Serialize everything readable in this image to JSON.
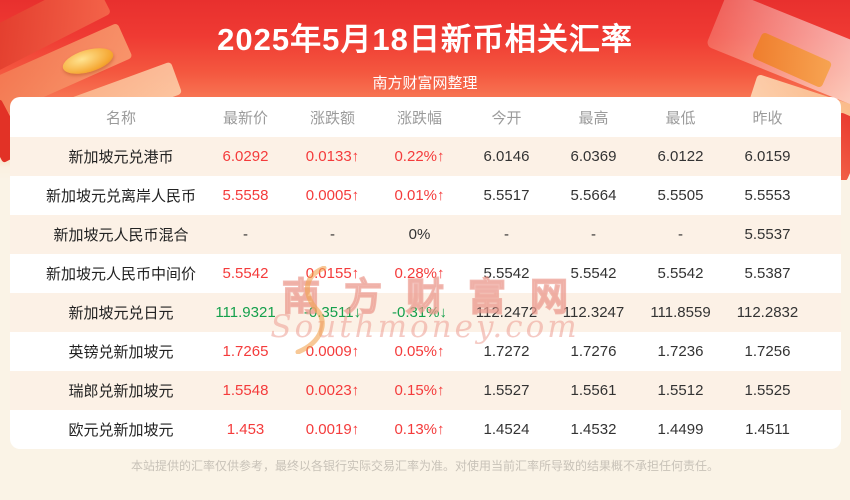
{
  "header": {
    "title": "2025年5月18日新币相关汇率",
    "subtitle": "南方财富网整理"
  },
  "table": {
    "columns": [
      "名称",
      "最新价",
      "涨跌额",
      "涨跌幅",
      "今开",
      "最高",
      "最低",
      "昨收"
    ],
    "rows": [
      {
        "name": "新加坡元兑港币",
        "latest": "6.0292",
        "change": "0.0133↑",
        "change_pct": "0.22%↑",
        "open": "6.0146",
        "high": "6.0369",
        "low": "6.0122",
        "prev_close": "6.0159",
        "trend": "up"
      },
      {
        "name": "新加坡元兑离岸人民币",
        "latest": "5.5558",
        "change": "0.0005↑",
        "change_pct": "0.01%↑",
        "open": "5.5517",
        "high": "5.5664",
        "low": "5.5505",
        "prev_close": "5.5553",
        "trend": "up"
      },
      {
        "name": "新加坡元人民币混合",
        "latest": "-",
        "change": "-",
        "change_pct": "0%",
        "open": "-",
        "high": "-",
        "low": "-",
        "prev_close": "5.5537",
        "trend": "flat"
      },
      {
        "name": "新加坡元人民币中间价",
        "latest": "5.5542",
        "change": "0.0155↑",
        "change_pct": "0.28%↑",
        "open": "5.5542",
        "high": "5.5542",
        "low": "5.5542",
        "prev_close": "5.5387",
        "trend": "up"
      },
      {
        "name": "新加坡元兑日元",
        "latest": "111.9321",
        "change": "-0.3511↓",
        "change_pct": "-0.31%↓",
        "open": "112.2472",
        "high": "112.3247",
        "low": "111.8559",
        "prev_close": "112.2832",
        "trend": "down"
      },
      {
        "name": "英镑兑新加坡元",
        "latest": "1.7265",
        "change": "0.0009↑",
        "change_pct": "0.05%↑",
        "open": "1.7272",
        "high": "1.7276",
        "low": "1.7236",
        "prev_close": "1.7256",
        "trend": "up"
      },
      {
        "name": "瑞郎兑新加坡元",
        "latest": "1.5548",
        "change": "0.0023↑",
        "change_pct": "0.15%↑",
        "open": "1.5527",
        "high": "1.5561",
        "low": "1.5512",
        "prev_close": "1.5525",
        "trend": "up"
      },
      {
        "name": "欧元兑新加坡元",
        "latest": "1.453",
        "change": "0.0019↑",
        "change_pct": "0.13%↑",
        "open": "1.4524",
        "high": "1.4532",
        "low": "1.4499",
        "prev_close": "1.4511",
        "trend": "up"
      }
    ]
  },
  "watermark": {
    "cn": "南方财富网",
    "en": "Southmoney.com"
  },
  "footer": {
    "disclaimer": "本站提供的汇率仅供参考，最终以各银行实际交易汇率为准。对使用当前汇率所导致的结果概不承担任何责任。"
  },
  "colors": {
    "up_red": "#f43b3b",
    "down_green": "#15a04c",
    "banner_red": "#ee3431",
    "row_alt_cream": "#fcf1e6",
    "page_cream": "#faf3e6"
  }
}
